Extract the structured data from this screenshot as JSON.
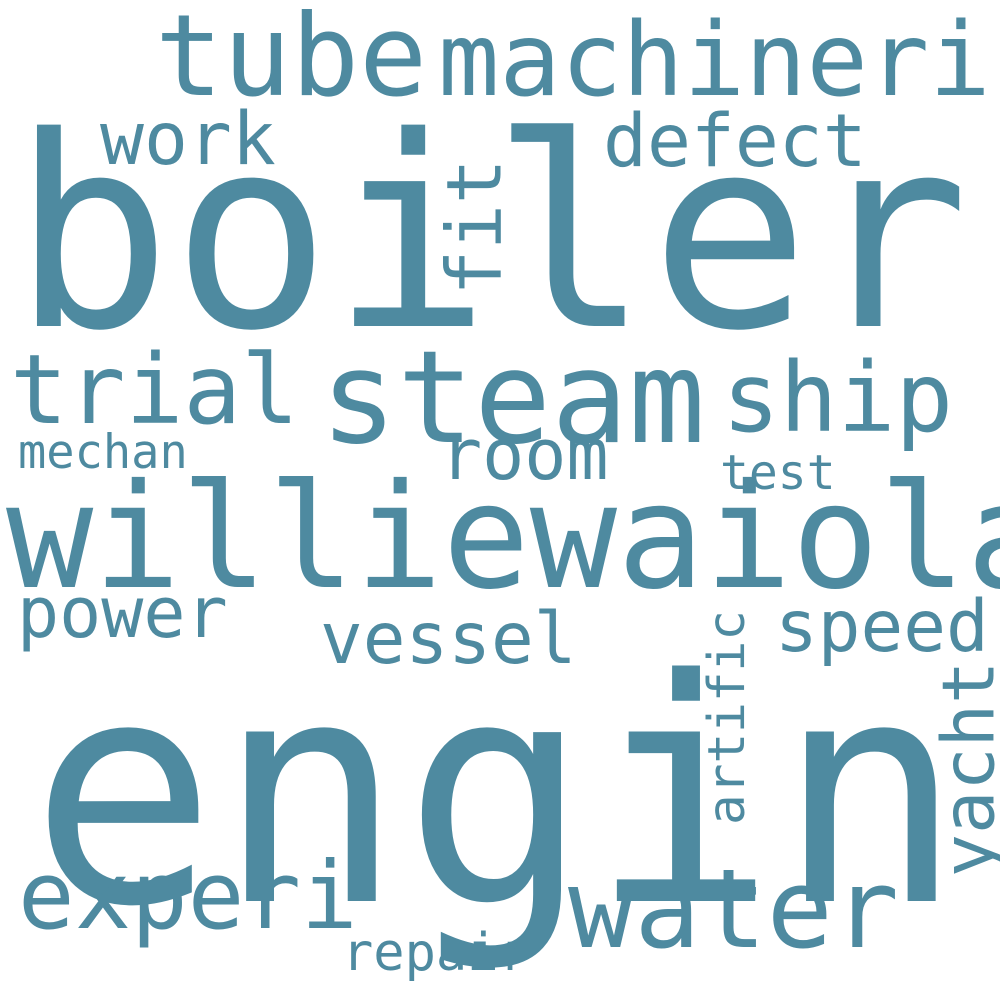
{
  "cloud": {
    "color": "#4e8aa0",
    "background": "#ffffff",
    "words": {
      "engin": "engin",
      "boiler": "boiler",
      "williewaiola": "williewaiola",
      "steam": "steam",
      "tube": "tube",
      "machineri": "machineri",
      "water": "water",
      "trial": "trial",
      "ship": "ship",
      "experi": "experi",
      "defect": "defect",
      "work": "work",
      "room": "room",
      "vessel": "vessel",
      "speed": "speed",
      "power": "power",
      "mechan": "mechan",
      "test": "test",
      "repair": "repair",
      "fit": "fit",
      "yacht": "yacht",
      "artific": "artific"
    }
  }
}
